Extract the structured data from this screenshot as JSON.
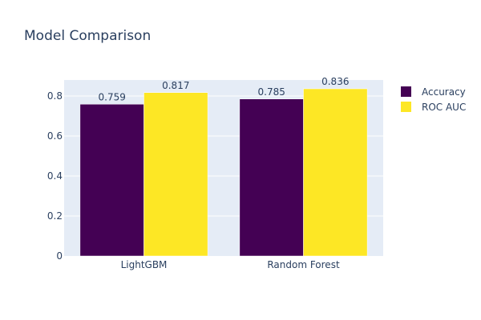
{
  "chart_data": {
    "type": "bar",
    "title": "Model Comparison",
    "xlabel": "",
    "ylabel": "",
    "categories": [
      "LightGBM",
      "Random Forest"
    ],
    "series": [
      {
        "name": "Accuracy",
        "values": [
          0.759,
          0.785
        ],
        "labels": [
          "0.759",
          "0.785"
        ],
        "color": "#440154"
      },
      {
        "name": "ROC AUC",
        "values": [
          0.817,
          0.836
        ],
        "labels": [
          "0.817",
          "0.836"
        ],
        "color": "#fde725"
      }
    ],
    "ylim": [
      0,
      0.88
    ],
    "yticks": [
      0,
      0.2,
      0.4,
      0.6,
      0.8
    ],
    "ytick_labels": [
      "0",
      "0.2",
      "0.4",
      "0.6",
      "0.8"
    ],
    "grid": true,
    "legend_position": "top-right",
    "plot_background": "#e5ecf6",
    "gridline_color": "#ffffff"
  }
}
